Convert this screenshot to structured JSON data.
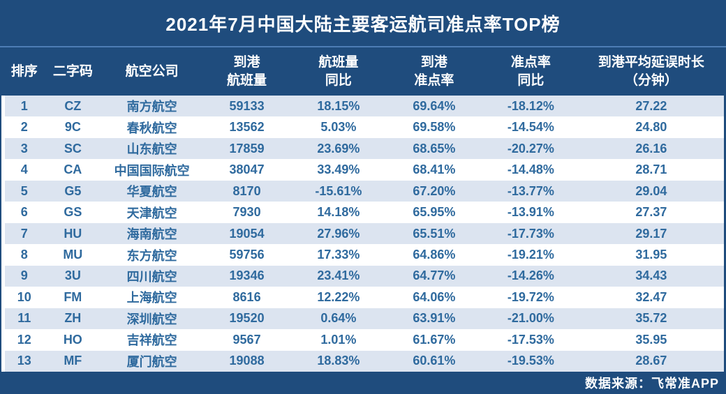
{
  "title": "2021年7月中国大陆主要客运航司准点率TOP榜",
  "columns": [
    {
      "key": "rank",
      "lines": [
        "排序"
      ]
    },
    {
      "key": "code",
      "lines": [
        "二字码"
      ]
    },
    {
      "key": "airline",
      "lines": [
        "航空公司"
      ]
    },
    {
      "key": "flights",
      "lines": [
        "到港",
        "航班量"
      ]
    },
    {
      "key": "flights-yoy",
      "lines": [
        "航班量",
        "同比"
      ]
    },
    {
      "key": "otp",
      "lines": [
        "到港",
        "准点率"
      ]
    },
    {
      "key": "otp-yoy",
      "lines": [
        "准点率",
        "同比"
      ]
    },
    {
      "key": "avg-delay",
      "lines": [
        "到港平均延误时长",
        "（分钟）"
      ]
    }
  ],
  "rows": [
    [
      "1",
      "CZ",
      "南方航空",
      "59133",
      "18.15%",
      "69.64%",
      "-18.12%",
      "27.22"
    ],
    [
      "2",
      "9C",
      "春秋航空",
      "13562",
      "5.03%",
      "69.58%",
      "-14.54%",
      "24.80"
    ],
    [
      "3",
      "SC",
      "山东航空",
      "17859",
      "23.69%",
      "68.65%",
      "-20.27%",
      "26.16"
    ],
    [
      "4",
      "CA",
      "中国国际航空",
      "38047",
      "33.49%",
      "68.41%",
      "-14.48%",
      "28.71"
    ],
    [
      "5",
      "G5",
      "华夏航空",
      "8170",
      "-15.61%",
      "67.20%",
      "-13.77%",
      "29.04"
    ],
    [
      "6",
      "GS",
      "天津航空",
      "7930",
      "14.18%",
      "65.95%",
      "-13.91%",
      "27.37"
    ],
    [
      "7",
      "HU",
      "海南航空",
      "19054",
      "27.96%",
      "65.51%",
      "-17.73%",
      "29.17"
    ],
    [
      "8",
      "MU",
      "东方航空",
      "59756",
      "17.33%",
      "64.86%",
      "-19.21%",
      "31.95"
    ],
    [
      "9",
      "3U",
      "四川航空",
      "19346",
      "23.41%",
      "64.77%",
      "-14.26%",
      "34.43"
    ],
    [
      "10",
      "FM",
      "上海航空",
      "8616",
      "12.22%",
      "64.06%",
      "-19.72%",
      "32.47"
    ],
    [
      "11",
      "ZH",
      "深圳航空",
      "19520",
      "0.64%",
      "63.91%",
      "-21.00%",
      "35.72"
    ],
    [
      "12",
      "HO",
      "吉祥航空",
      "9567",
      "1.01%",
      "61.67%",
      "-17.53%",
      "35.95"
    ],
    [
      "13",
      "MF",
      "厦门航空",
      "19088",
      "18.83%",
      "60.61%",
      "-19.53%",
      "28.67"
    ]
  ],
  "footer": {
    "source_label": "数据来源：飞常准APP"
  },
  "colors": {
    "dark_blue": "#1f4c7d",
    "stripe_blue": "#dce4f0",
    "text_blue": "#2f6a9e",
    "separator_blue": "#4d7db5",
    "white": "#ffffff"
  },
  "chart_data": {
    "type": "table",
    "title": "2021年7月中国大陆主要客运航司准点率TOP榜",
    "columns": [
      "排序",
      "二字码",
      "航空公司",
      "到港航班量",
      "航班量同比",
      "到港准点率",
      "准点率同比",
      "到港平均延误时长（分钟）"
    ],
    "rows": [
      [
        "1",
        "CZ",
        "南方航空",
        "59133",
        "18.15%",
        "69.64%",
        "-18.12%",
        "27.22"
      ],
      [
        "2",
        "9C",
        "春秋航空",
        "13562",
        "5.03%",
        "69.58%",
        "-14.54%",
        "24.80"
      ],
      [
        "3",
        "SC",
        "山东航空",
        "17859",
        "23.69%",
        "68.65%",
        "-20.27%",
        "26.16"
      ],
      [
        "4",
        "CA",
        "中国国际航空",
        "38047",
        "33.49%",
        "68.41%",
        "-14.48%",
        "28.71"
      ],
      [
        "5",
        "G5",
        "华夏航空",
        "8170",
        "-15.61%",
        "67.20%",
        "-13.77%",
        "29.04"
      ],
      [
        "6",
        "GS",
        "天津航空",
        "7930",
        "14.18%",
        "65.95%",
        "-13.91%",
        "27.37"
      ],
      [
        "7",
        "HU",
        "海南航空",
        "19054",
        "27.96%",
        "65.51%",
        "-17.73%",
        "29.17"
      ],
      [
        "8",
        "MU",
        "东方航空",
        "59756",
        "17.33%",
        "64.86%",
        "-19.21%",
        "31.95"
      ],
      [
        "9",
        "3U",
        "四川航空",
        "19346",
        "23.41%",
        "64.77%",
        "-14.26%",
        "34.43"
      ],
      [
        "10",
        "FM",
        "上海航空",
        "8616",
        "12.22%",
        "64.06%",
        "-19.72%",
        "32.47"
      ],
      [
        "11",
        "ZH",
        "深圳航空",
        "19520",
        "0.64%",
        "63.91%",
        "-21.00%",
        "35.72"
      ],
      [
        "12",
        "HO",
        "吉祥航空",
        "9567",
        "1.01%",
        "61.67%",
        "-17.53%",
        "35.95"
      ],
      [
        "13",
        "MF",
        "厦门航空",
        "19088",
        "18.83%",
        "60.61%",
        "-19.53%",
        "28.67"
      ]
    ],
    "source": "数据来源：飞常准APP",
    "layout": {
      "striped_rows": true,
      "stripe_on": "odd"
    }
  }
}
